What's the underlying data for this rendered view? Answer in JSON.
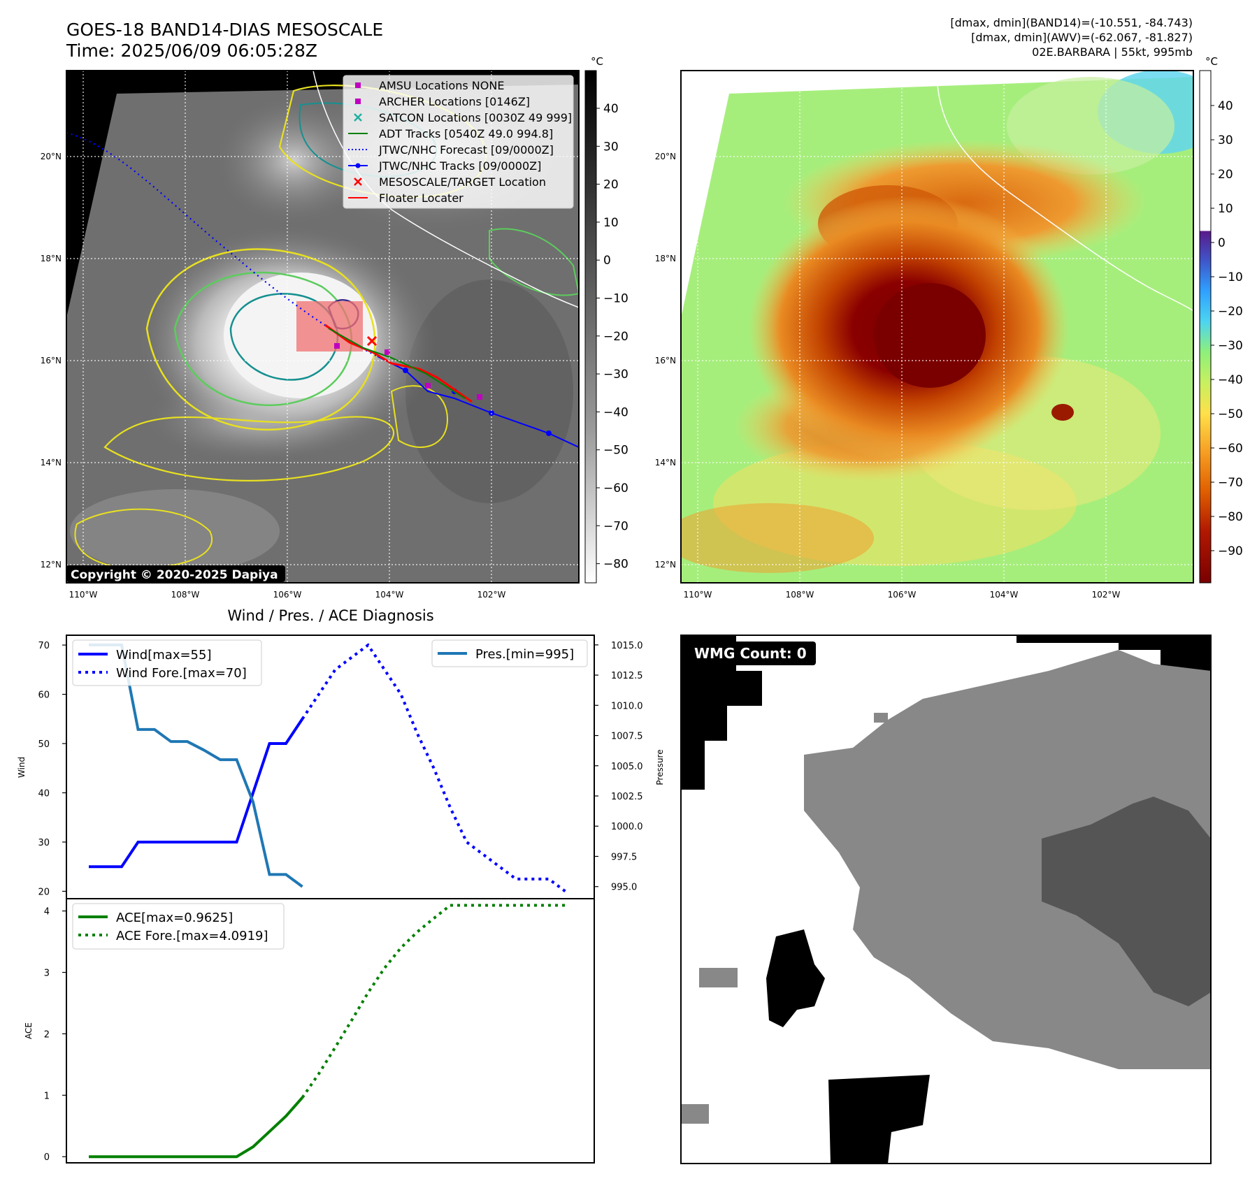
{
  "header": {
    "title_line1": "GOES-18 BAND14-DIAS MESOSCALE",
    "title_line2": "Time: 2025/06/09 06:05:28Z",
    "right_line1": "[dmax, dmin](BAND14)=(-10.551, -84.743)",
    "right_line2": "[dmax, dmin](AWV)=(-62.067, -81.827)",
    "right_line3": "02E.BARBARA | 55kt, 995mb"
  },
  "map_axes": {
    "lat_labels": [
      "20°N",
      "18°N",
      "16°N",
      "14°N",
      "12°N"
    ],
    "lon_labels": [
      "110°W",
      "108°W",
      "106°W",
      "104°W",
      "102°W"
    ]
  },
  "colorbar_left": {
    "unit": "°C",
    "ticks": [
      "40",
      "30",
      "20",
      "10",
      "0",
      "−10",
      "−20",
      "−30",
      "−40",
      "−50",
      "−60",
      "−70",
      "−80"
    ]
  },
  "colorbar_right": {
    "unit": "°C",
    "ticks": [
      "40",
      "30",
      "20",
      "10",
      "0",
      "−10",
      "−20",
      "−30",
      "−40",
      "−50",
      "−60",
      "−70",
      "−80",
      "−90"
    ]
  },
  "legend_map": [
    {
      "label": "AMSU Locations NONE",
      "color": "#c000c0",
      "marker": "square"
    },
    {
      "label": "ARCHER Locations [0146Z]",
      "color": "#c000c0",
      "marker": "square"
    },
    {
      "label": "SATCON Locations [0030Z 49 999]",
      "color": "#20b0a0",
      "marker": "x"
    },
    {
      "label": "ADT Tracks [0540Z 49.0 994.8]",
      "color": "#008000",
      "marker": "line"
    },
    {
      "label": "JTWC/NHC Forecast [09/0000Z]",
      "color": "#0000ff",
      "marker": "dotted"
    },
    {
      "label": "JTWC/NHC Tracks [09/0000Z]",
      "color": "#0000ff",
      "marker": "line-dot"
    },
    {
      "label": "MESOSCALE/TARGET Location",
      "color": "#ff0000",
      "marker": "x"
    },
    {
      "label": "Floater Locater",
      "color": "#ff0000",
      "marker": "line"
    }
  ],
  "copyright": "Copyright © 2020-2025 Dapiya",
  "diagnosis_title": "Wind / Pres. / ACE Diagnosis",
  "wmg_label": "WMG Count: 0",
  "chart_data": [
    {
      "type": "line",
      "title": "Wind / Pres. / ACE Diagnosis",
      "ylabel": "Wind",
      "ylabel_right": "Pressure",
      "ylim": [
        18.5,
        72
      ],
      "ylim_right": [
        994.0,
        1015.8
      ],
      "yticks": [
        20,
        30,
        40,
        50,
        60,
        70
      ],
      "yticks_right": [
        "995.0",
        "997.5",
        "1000.0",
        "1002.5",
        "1005.0",
        "1007.5",
        "1010.0",
        "1012.5",
        "1015.0"
      ],
      "series": [
        {
          "name": "Wind[max=55]",
          "color": "#0000ff",
          "style": "solid",
          "axis": "left",
          "points": [
            [
              0,
              25
            ],
            [
              2,
              25
            ],
            [
              3,
              30
            ],
            [
              4,
              30
            ],
            [
              5,
              30
            ],
            [
              6,
              30
            ],
            [
              7,
              30
            ],
            [
              8,
              30
            ],
            [
              9,
              30
            ],
            [
              10,
              40
            ],
            [
              11,
              50
            ],
            [
              12,
              50
            ],
            [
              13,
              55
            ]
          ]
        },
        {
          "name": "Wind Fore.[max=70]",
          "color": "#0000ff",
          "style": "dotted",
          "axis": "left",
          "points": [
            [
              13,
              55
            ],
            [
              14,
              60
            ],
            [
              15,
              65
            ],
            [
              16,
              67.5
            ],
            [
              17,
              70
            ],
            [
              18,
              65
            ],
            [
              19,
              60
            ],
            [
              20,
              52
            ],
            [
              21,
              45
            ],
            [
              22,
              37
            ],
            [
              23,
              30
            ],
            [
              24,
              27.5
            ],
            [
              25,
              25
            ],
            [
              26,
              22.5
            ],
            [
              27,
              22.5
            ],
            [
              28,
              22.5
            ],
            [
              29,
              20
            ]
          ]
        },
        {
          "name": "Pres.[min=995]",
          "color": "#1f77b4",
          "style": "solid",
          "axis": "right",
          "points": [
            [
              0,
              1015
            ],
            [
              2,
              1015
            ],
            [
              3,
              1008
            ],
            [
              4,
              1008
            ],
            [
              5,
              1007
            ],
            [
              6,
              1007
            ],
            [
              7,
              1006.3
            ],
            [
              8,
              1005.5
            ],
            [
              9,
              1005.5
            ],
            [
              10,
              1002
            ],
            [
              11,
              996
            ],
            [
              12,
              996
            ],
            [
              13,
              995
            ]
          ]
        }
      ]
    },
    {
      "type": "line",
      "ylabel": "ACE",
      "ylim": [
        -0.1,
        4.2
      ],
      "yticks": [
        0,
        1,
        2,
        3,
        4
      ],
      "series": [
        {
          "name": "ACE[max=0.9625]",
          "color": "#008000",
          "style": "solid",
          "points": [
            [
              0,
              0
            ],
            [
              1,
              0
            ],
            [
              2,
              0
            ],
            [
              3,
              0
            ],
            [
              4,
              0
            ],
            [
              5,
              0
            ],
            [
              6,
              0
            ],
            [
              7,
              0
            ],
            [
              8,
              0
            ],
            [
              9,
              0
            ],
            [
              10,
              0.16
            ],
            [
              11,
              0.41
            ],
            [
              12,
              0.66
            ],
            [
              13,
              0.9625
            ]
          ]
        },
        {
          "name": "ACE Fore.[max=4.0919]",
          "color": "#008000",
          "style": "dotted",
          "points": [
            [
              13,
              0.9625
            ],
            [
              14,
              1.35
            ],
            [
              15,
              1.78
            ],
            [
              16,
              2.22
            ],
            [
              17,
              2.67
            ],
            [
              18,
              3.07
            ],
            [
              19,
              3.4
            ],
            [
              20,
              3.66
            ],
            [
              21,
              3.88
            ],
            [
              22,
              4.0919
            ],
            [
              23,
              4.0919
            ],
            [
              24,
              4.0919
            ],
            [
              25,
              4.0919
            ],
            [
              26,
              4.0919
            ],
            [
              27,
              4.0919
            ],
            [
              28,
              4.0919
            ],
            [
              29,
              4.0919
            ]
          ]
        }
      ]
    }
  ]
}
